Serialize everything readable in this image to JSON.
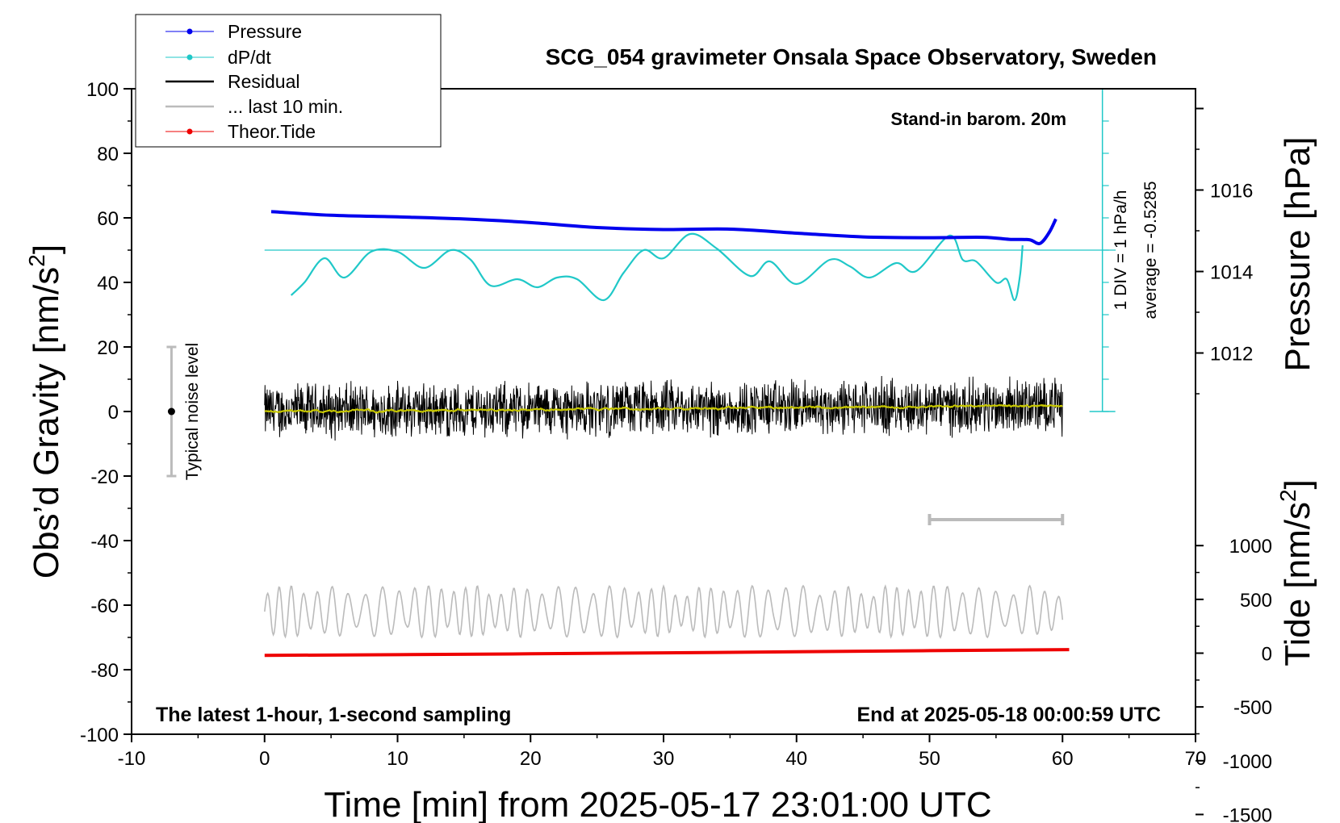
{
  "chart_data": {
    "type": "line",
    "title": "SCG_054 gravimeter Onsala Space Observatory, Sweden",
    "xlabel": "Time [min] from 2025-05-17 23:01:00 UTC",
    "ylabel": "Obs’d Gravity [nm/s",
    "ylabel_sup": "2",
    "ylabel_end": "]",
    "y2label": "Pressure [hPa]",
    "y3label": "Tide [nm/s",
    "y3label_sup": "2",
    "y3label_end": "]",
    "xlim": [
      -10,
      70
    ],
    "ylim": [
      -100,
      100
    ],
    "pressure_lim": [
      1010,
      1018
    ],
    "tide_lim": [
      -1500,
      1000
    ],
    "x_ticks": [
      "-10",
      "0",
      "10",
      "20",
      "30",
      "40",
      "50",
      "60",
      "70"
    ],
    "y_ticks": [
      "100",
      "80",
      "60",
      "40",
      "20",
      "0",
      "-20",
      "-40",
      "-60",
      "-80",
      "-100"
    ],
    "pressure_ticks": [
      "1016",
      "1014",
      "1012"
    ],
    "tide_ticks": [
      "1000",
      "500",
      "0",
      "-500",
      "-1000",
      "-1500"
    ],
    "annotations": {
      "stand_in": "Stand-in barom. 20m",
      "latest": "The latest 1-hour, 1-second sampling",
      "end_at": "End at 2025-05-18 00:00:59 UTC",
      "div_label": "1 DIV = 1 hPa/h",
      "average": "average = -0.5285",
      "noise": "Typical noise level"
    },
    "legend": {
      "position": "top-left",
      "entries": [
        {
          "label": "Pressure",
          "color": "#0000ee"
        },
        {
          "label": "dP/dt",
          "color": "#20c8c8"
        },
        {
          "label": "Residual",
          "color": "#000000"
        },
        {
          "label": "... last 10 min.",
          "color": "#bbbbbb"
        },
        {
          "label": "Theor.Tide",
          "color": "#ee0000"
        }
      ]
    },
    "series": [
      {
        "name": "Pressure",
        "color": "#0000ee",
        "axis": "pressure",
        "x": [
          0.5,
          5,
          10,
          15,
          20,
          25,
          30,
          35,
          40,
          45,
          50,
          54,
          56,
          57.5,
          58.3,
          59,
          59.5
        ],
        "values": [
          1015.47,
          1015.38,
          1015.34,
          1015.29,
          1015.2,
          1015.08,
          1015.03,
          1015.04,
          1014.94,
          1014.85,
          1014.83,
          1014.84,
          1014.79,
          1014.78,
          1014.69,
          1014.96,
          1015.29
        ]
      },
      {
        "name": "dP/dt",
        "color": "#20c8c8",
        "x": [
          2,
          3,
          4.5,
          6,
          8,
          10,
          12,
          14,
          15.5,
          17,
          19,
          20.5,
          22,
          23.5,
          25.5,
          27,
          28.5,
          30,
          32,
          34,
          36.5,
          38,
          40,
          42.5,
          44,
          45.5,
          47.5,
          49,
          51.5,
          52.5,
          53.5,
          55,
          55.8,
          56.4,
          56.8,
          57
        ],
        "values": [
          36,
          40,
          47.5,
          41.5,
          49.5,
          49.5,
          44.5,
          50,
          47,
          39,
          41,
          38.5,
          41.5,
          41,
          34.5,
          43,
          50,
          47.5,
          55,
          50.5,
          42,
          46.5,
          39.5,
          47,
          45,
          41.5,
          46,
          43.5,
          54.5,
          47,
          46.5,
          40,
          41,
          34.5,
          42,
          51.5
        ],
        "average_line": 50
      },
      {
        "name": "Residual",
        "color": "#000000",
        "x_range": [
          0,
          60
        ],
        "values_range": [
          -9,
          11
        ]
      },
      {
        "name": "... last 10 min.",
        "color": "#bbbbbb",
        "x_range": [
          0,
          60
        ],
        "values_range": [
          -70,
          -54
        ]
      },
      {
        "name": "Theor.Tide",
        "color": "#ee0000",
        "axis": "tide",
        "x": [
          0,
          10,
          20,
          30,
          40,
          50,
          60.5
        ],
        "values": [
          -20,
          -14,
          -6,
          3,
          13,
          23,
          33
        ]
      }
    ],
    "noise_bar": {
      "x": -7,
      "y": [
        -20,
        20
      ]
    },
    "scale_bar": {
      "x": [
        50,
        60
      ]
    }
  }
}
